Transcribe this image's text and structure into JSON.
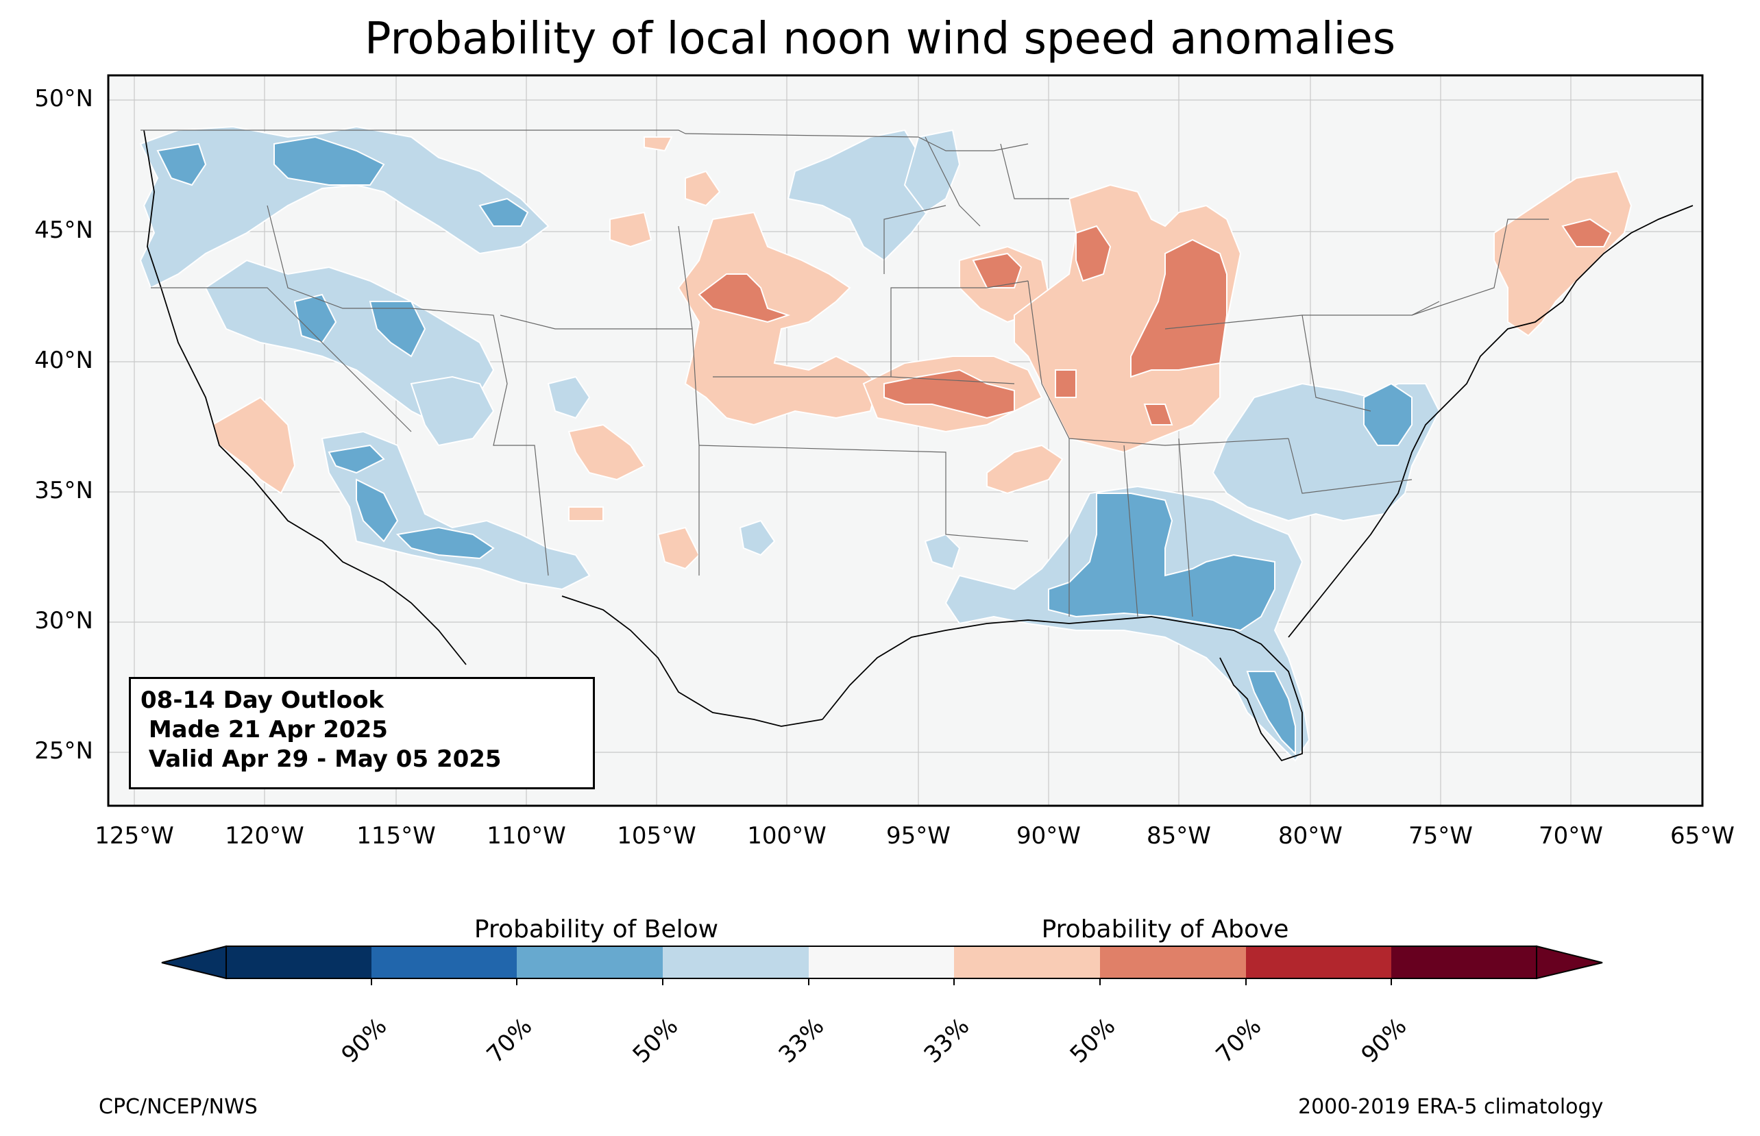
{
  "title": "Probability of local noon wind speed anomalies",
  "lat_ticks": [
    "50°N",
    "45°N",
    "40°N",
    "35°N",
    "30°N",
    "25°N"
  ],
  "lon_ticks": [
    "125°W",
    "120°W",
    "115°W",
    "110°W",
    "105°W",
    "100°W",
    "95°W",
    "90°W",
    "85°W",
    "80°W",
    "75°W",
    "70°W",
    "65°W"
  ],
  "outlook": {
    "line1": "08-14 Day Outlook",
    "line2": " Made 21 Apr 2025",
    "line3": " Valid Apr 29 - May 05 2025"
  },
  "colorbar": {
    "below_label": "Probability of Below",
    "above_label": "Probability of Above",
    "ticks": [
      "90%",
      "70%",
      "50%",
      "33%",
      "33%",
      "50%",
      "70%",
      "90%"
    ],
    "colors": [
      "#053061",
      "#2166ac",
      "#67a9cf",
      "#bfd9e9",
      "#f7f7f7",
      "#f9ccb5",
      "#e08068",
      "#b2262d",
      "#67001f"
    ]
  },
  "footer": {
    "left": "CPC/NCEP/NWS",
    "right": "2000-2019 ERA-5 climatology"
  },
  "map": {
    "extent": {
      "lon": [
        -126,
        -65
      ],
      "lat": [
        23,
        51
      ]
    },
    "background": "#f5f6f6"
  }
}
